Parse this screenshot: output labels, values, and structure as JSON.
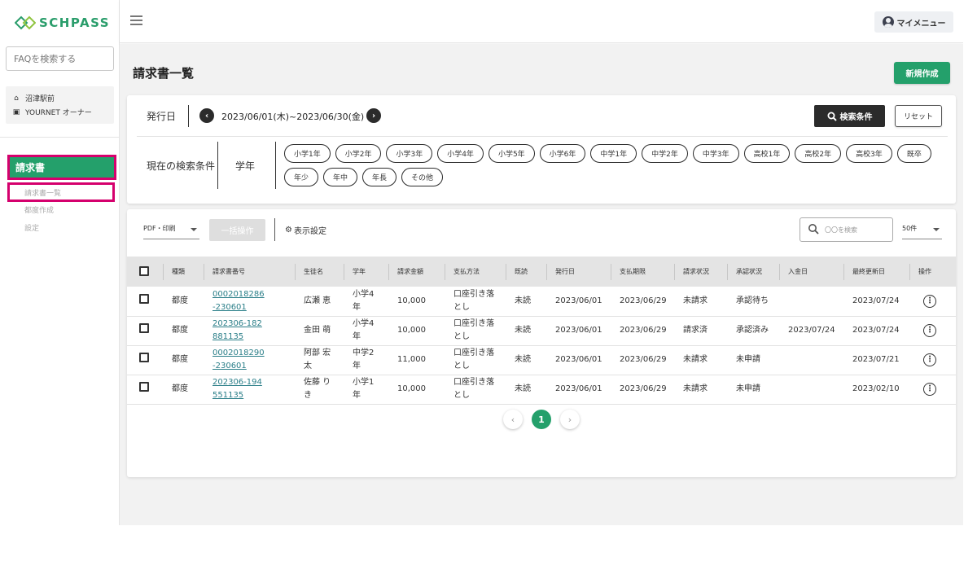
{
  "sidebar": {
    "logo_text": "SCHPASS",
    "faq_placeholder": "FAQを検索する",
    "school_name": "沼津駅前",
    "owner_name": "YOURNET オーナー",
    "section_title": "請求書",
    "sub_items": [
      "請求書一覧",
      "都度作成",
      "設定"
    ]
  },
  "header": {
    "my_menu": "マイメニュー"
  },
  "page": {
    "title": "請求書一覧",
    "new_button": "新規作成"
  },
  "filter": {
    "date_label": "発行日",
    "date_range": "2023/06/01(木)~2023/06/30(金)",
    "prev_icon": "chevron-left-icon",
    "next_icon": "chevron-right-icon",
    "search_button": "検索条件",
    "reset_button": "リセット",
    "current_label": "現在の検索条件",
    "grade_label": "学年",
    "chips": [
      "小学1年",
      "小学2年",
      "小学3年",
      "小学4年",
      "小学5年",
      "小学6年",
      "中学1年",
      "中学2年",
      "中学3年",
      "高校1年",
      "高校2年",
      "高校3年",
      "既卒",
      "年少",
      "年中",
      "年長",
      "その他"
    ]
  },
  "toolbar": {
    "pdf_select": "PDF・印刷",
    "bulk_button": "一括操作",
    "display_settings": "表示設定",
    "search_placeholder": "〇〇を検索",
    "per_page": "50件"
  },
  "table": {
    "headers": {
      "type": "種類",
      "number": "請求書番号",
      "student": "生徒名",
      "grade": "学年",
      "amount": "請求金額",
      "payment": "支払方法",
      "read": "既読",
      "issued": "発行日",
      "due": "支払期限",
      "billing": "請求状況",
      "approval": "承認状況",
      "paid_date": "入金日",
      "updated": "最終更新日",
      "action": "操作"
    },
    "rows": [
      {
        "type": "都度",
        "number": "0002018286-230601",
        "student": "広瀬 恵",
        "grade": "小学4年",
        "amount": "10,000",
        "payment": "口座引き落とし",
        "read": "未読",
        "issued": "2023/06/01",
        "due": "2023/06/29",
        "billing": "未請求",
        "approval": "承認待ち",
        "paid_date": "",
        "updated": "2023/07/24"
      },
      {
        "type": "都度",
        "number": "202306-182881135",
        "student": "金田 萌",
        "grade": "小学4年",
        "amount": "10,000",
        "payment": "口座引き落とし",
        "read": "未読",
        "issued": "2023/06/01",
        "due": "2023/06/29",
        "billing": "請求済",
        "approval": "承認済み",
        "paid_date": "2023/07/24",
        "updated": "2023/07/24"
      },
      {
        "type": "都度",
        "number": "0002018290-230601",
        "student": "阿部 宏太",
        "grade": "中学2年",
        "amount": "11,000",
        "payment": "口座引き落とし",
        "read": "未読",
        "issued": "2023/06/01",
        "due": "2023/06/29",
        "billing": "未請求",
        "approval": "未申請",
        "paid_date": "",
        "updated": "2023/07/21"
      },
      {
        "type": "都度",
        "number": "202306-194551135",
        "student": "佐藤 りき",
        "grade": "小学1年",
        "amount": "10,000",
        "payment": "口座引き落とし",
        "read": "未読",
        "issued": "2023/06/01",
        "due": "2023/06/29",
        "billing": "未請求",
        "approval": "未申請",
        "paid_date": "",
        "updated": "2023/02/10"
      }
    ]
  },
  "pagination": {
    "current_page": "1"
  },
  "colors": {
    "brand": "#24a06b",
    "highlight": "#d5006d",
    "link": "#2a7e88"
  }
}
